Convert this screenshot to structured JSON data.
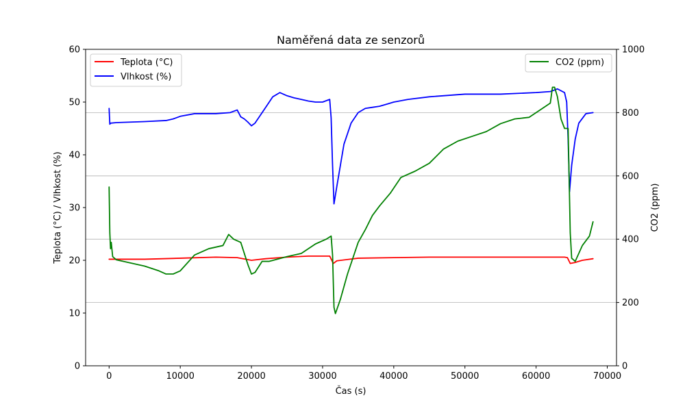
{
  "chart_data": {
    "type": "line",
    "title": "Naměřená data ze senzorů",
    "xlabel": "Čas (s)",
    "ylabel_left": "Teplota (°C) / Vlhkost (%)",
    "ylabel_right": "CO2 (ppm)",
    "xlim": [
      -3300,
      71300
    ],
    "ylim_left": [
      0,
      60
    ],
    "ylim_right": [
      0,
      1000
    ],
    "xticks": [
      "0",
      "10000",
      "20000",
      "30000",
      "40000",
      "50000",
      "60000",
      "70000"
    ],
    "yticks_left": [
      "0",
      "10",
      "20",
      "30",
      "40",
      "50",
      "60"
    ],
    "yticks_right": [
      "0",
      "200",
      "400",
      "600",
      "800",
      "1000"
    ],
    "grid": "horizontal gridlines at right-axis ticks",
    "legend_left": "upper-left",
    "legend_right": "upper-right",
    "series": [
      {
        "name": "Teplota (°C)",
        "axis": "left",
        "color": "#ff0000",
        "x": [
          0,
          1000,
          5000,
          10000,
          15000,
          18000,
          20000,
          22000,
          25000,
          28000,
          31000,
          31500,
          32000,
          35000,
          40000,
          45000,
          50000,
          55000,
          60000,
          64000,
          64400,
          64800,
          65500,
          66500,
          68000
        ],
        "y": [
          20.2,
          20.2,
          20.2,
          20.4,
          20.6,
          20.5,
          20.0,
          20.3,
          20.6,
          20.8,
          20.8,
          19.4,
          19.9,
          20.4,
          20.5,
          20.6,
          20.6,
          20.6,
          20.6,
          20.6,
          20.5,
          19.4,
          19.6,
          20.0,
          20.3
        ]
      },
      {
        "name": "Vlhkost (%)",
        "axis": "left",
        "color": "#0000ff",
        "x": [
          0,
          100,
          200,
          1000,
          3000,
          5000,
          8000,
          9000,
          10000,
          12000,
          15000,
          17000,
          18000,
          18500,
          19000,
          19500,
          20000,
          20500,
          21000,
          22000,
          23000,
          24000,
          25000,
          26000,
          27000,
          28000,
          29000,
          30000,
          31000,
          31200,
          31400,
          31600,
          32000,
          32500,
          33000,
          34000,
          35000,
          36000,
          37000,
          38000,
          39000,
          40000,
          42000,
          45000,
          50000,
          55000,
          60000,
          62000,
          63000,
          64000,
          64300,
          64500,
          64700,
          65000,
          65500,
          66000,
          67000,
          68000
        ],
        "y": [
          48.8,
          45.8,
          46.0,
          46.1,
          46.2,
          46.3,
          46.5,
          46.8,
          47.3,
          47.8,
          47.8,
          48.0,
          48.5,
          47.2,
          46.8,
          46.2,
          45.5,
          46.0,
          47.0,
          49.0,
          51.0,
          51.8,
          51.2,
          50.8,
          50.5,
          50.2,
          50.0,
          50.0,
          50.5,
          47.0,
          38.0,
          30.7,
          34.0,
          38.0,
          42.0,
          46.0,
          48.0,
          48.8,
          49.0,
          49.2,
          49.6,
          50.0,
          50.5,
          51.0,
          51.5,
          51.5,
          51.8,
          52.0,
          52.5,
          51.8,
          50.0,
          43.0,
          33.0,
          38.0,
          43.0,
          46.0,
          47.8,
          48.0
        ]
      },
      {
        "name": "CO2 (ppm)",
        "axis": "right",
        "color": "#008000",
        "x": [
          0,
          100,
          200,
          300,
          500,
          1000,
          3000,
          5000,
          7000,
          8000,
          9000,
          10000,
          12000,
          14000,
          16000,
          16800,
          17500,
          18500,
          19500,
          20000,
          20500,
          21500,
          22500,
          25000,
          27000,
          29000,
          30500,
          31200,
          31400,
          31600,
          31800,
          32500,
          33500,
          35000,
          36000,
          37000,
          38000,
          39500,
          41000,
          43000,
          45000,
          47000,
          49000,
          51000,
          53000,
          55000,
          57000,
          59000,
          61000,
          62000,
          62300,
          62600,
          63000,
          63500,
          64000,
          64200,
          64500,
          64800,
          65000,
          65500,
          66500,
          67500,
          68000
        ],
        "y": [
          565,
          420,
          370,
          390,
          345,
          335,
          325,
          315,
          300,
          290,
          290,
          300,
          350,
          370,
          380,
          415,
          400,
          390,
          320,
          290,
          295,
          330,
          330,
          345,
          355,
          385,
          400,
          410,
          350,
          185,
          165,
          210,
          290,
          390,
          430,
          475,
          505,
          545,
          595,
          615,
          640,
          685,
          710,
          725,
          740,
          765,
          780,
          785,
          815,
          830,
          880,
          880,
          850,
          780,
          750,
          750,
          750,
          420,
          340,
          330,
          380,
          410,
          455
        ]
      }
    ]
  }
}
